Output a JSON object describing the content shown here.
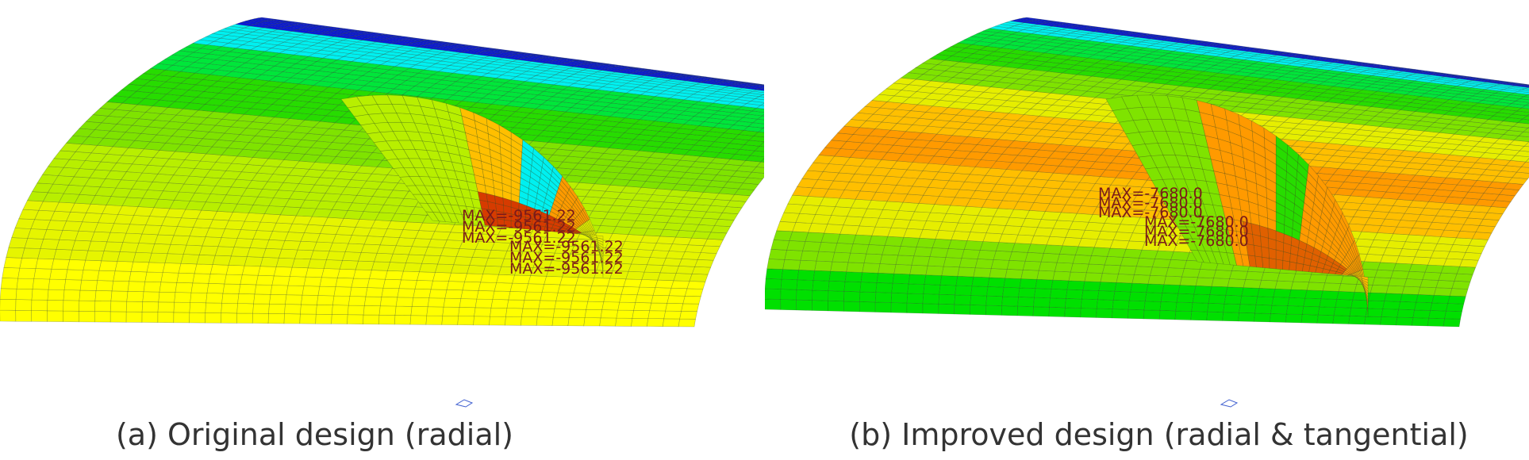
{
  "panels": [
    {
      "caption": "(a) Original design (radial)",
      "max_label": "MAX=-9561.22",
      "bands": [
        "#ffff00",
        "#e6f500",
        "#b8ef00",
        "#7fe300",
        "#27dc00",
        "#00e63a",
        "#00f0f0",
        "#0a17dc"
      ],
      "hot": [
        "#ff9a00",
        "#d63b00"
      ]
    },
    {
      "caption": "(b) Improved design (radial & tangential)",
      "max_label": "MAX=-7680.0",
      "bands": [
        "#00e000",
        "#7fe300",
        "#e6ee00",
        "#ffbf00",
        "#ff9a00",
        "#ffbf00",
        "#e6ee00",
        "#7fe300",
        "#27dc00",
        "#00e63a",
        "#00f0f0",
        "#0a17dc"
      ],
      "hot": [
        "#ff9a00",
        "#d63b00"
      ]
    }
  ]
}
